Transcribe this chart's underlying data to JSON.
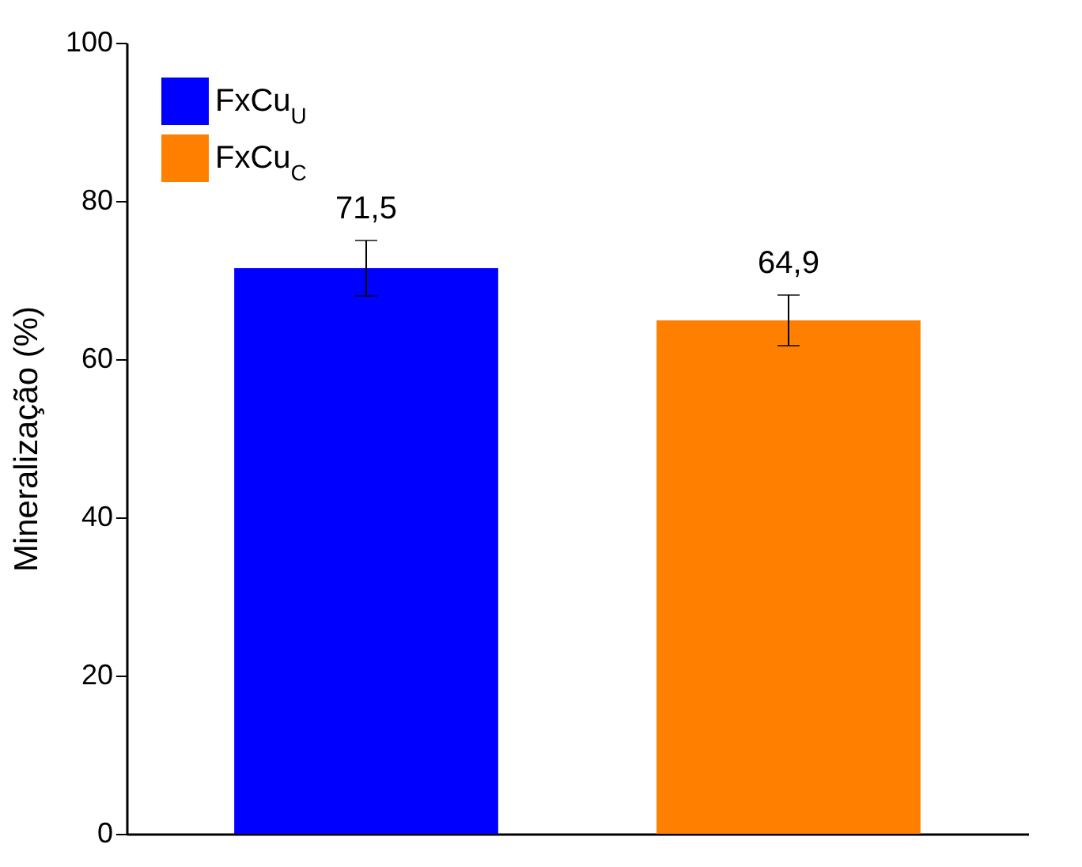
{
  "chart_data": {
    "type": "bar",
    "ylabel": "Mineralização (%)",
    "categories": [
      null,
      null
    ],
    "series": [
      {
        "name": "FxCu$_{U}$",
        "color": "#0000ff",
        "values": [
          71.5,
          null
        ],
        "value_labels": [
          "71,5",
          null
        ],
        "errors": [
          3.5,
          null
        ]
      },
      {
        "name": "FxCu$_{C}$",
        "color": "#ff8000",
        "values": [
          null,
          64.9
        ],
        "value_labels": [
          null,
          "64,9"
        ],
        "errors": [
          null,
          3.2
        ]
      }
    ],
    "ylim": [
      0,
      100
    ],
    "yticks": [
      0,
      20,
      40,
      60,
      80,
      100
    ],
    "legend": "top left",
    "tick_labels": "y",
    "grid": false
  }
}
